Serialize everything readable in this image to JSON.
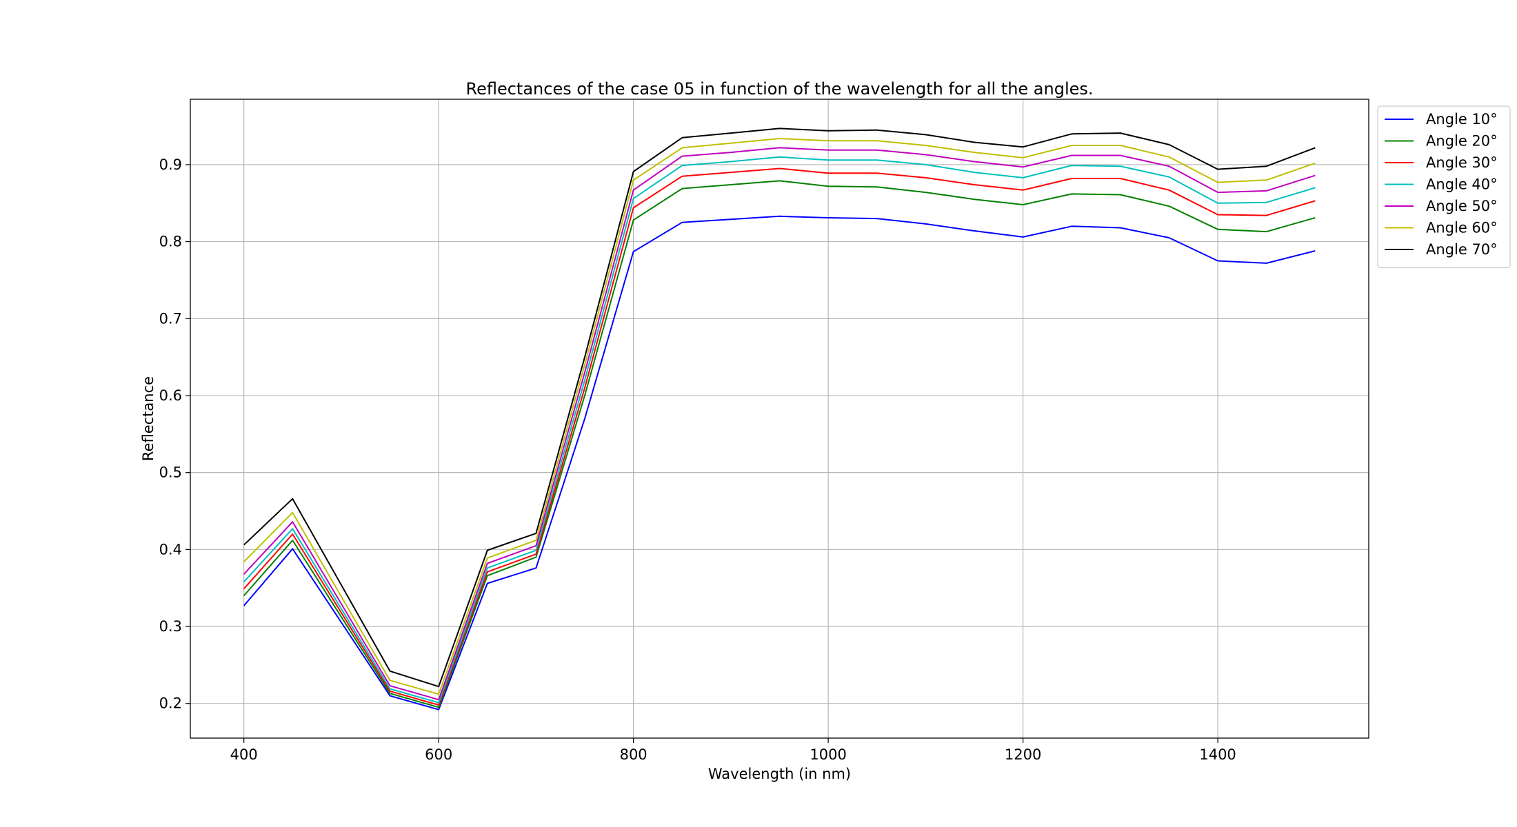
{
  "chart_data": {
    "type": "line",
    "title": "Reflectances of the case 05 in function of the wavelength for all the angles.",
    "xlabel": "Wavelength (in nm)",
    "ylabel": "Reflectance",
    "xlim": [
      345,
      1555
    ],
    "ylim": [
      0.155,
      0.985
    ],
    "xticks": [
      400,
      600,
      800,
      1000,
      1200,
      1400
    ],
    "xtick_labels": [
      "400",
      "600",
      "800",
      "1000",
      "1200",
      "1400"
    ],
    "yticks": [
      0.2,
      0.3,
      0.4,
      0.5,
      0.6,
      0.7,
      0.8,
      0.9
    ],
    "ytick_labels": [
      "0.2",
      "0.3",
      "0.4",
      "0.5",
      "0.6",
      "0.7",
      "0.8",
      "0.9"
    ],
    "grid": true,
    "legend_position": "outside-top-right",
    "x": [
      400,
      450,
      550,
      600,
      650,
      700,
      750,
      800,
      850,
      900,
      950,
      1000,
      1050,
      1100,
      1150,
      1200,
      1250,
      1300,
      1350,
      1400,
      1450,
      1500
    ],
    "series": [
      {
        "name": "Angle 10°",
        "color": "#0000ff",
        "values": [
          0.327,
          0.401,
          0.21,
          0.192,
          0.356,
          0.376,
          0.57,
          0.787,
          0.825,
          0.829,
          0.833,
          0.831,
          0.83,
          0.823,
          0.814,
          0.806,
          0.82,
          0.818,
          0.805,
          0.775,
          0.772,
          0.788
        ]
      },
      {
        "name": "Angle 20°",
        "color": "#008000",
        "values": [
          0.34,
          0.412,
          0.213,
          0.195,
          0.366,
          0.39,
          0.6,
          0.828,
          0.869,
          0.874,
          0.879,
          0.872,
          0.871,
          0.864,
          0.855,
          0.848,
          0.862,
          0.861,
          0.846,
          0.816,
          0.813,
          0.831
        ]
      },
      {
        "name": "Angle 30°",
        "color": "#ff0000",
        "values": [
          0.349,
          0.42,
          0.216,
          0.198,
          0.371,
          0.394,
          0.61,
          0.844,
          0.885,
          0.89,
          0.895,
          0.889,
          0.889,
          0.883,
          0.874,
          0.867,
          0.882,
          0.882,
          0.867,
          0.835,
          0.834,
          0.853
        ]
      },
      {
        "name": "Angle 40°",
        "color": "#00bfbf",
        "values": [
          0.358,
          0.427,
          0.219,
          0.201,
          0.376,
          0.399,
          0.62,
          0.856,
          0.899,
          0.904,
          0.91,
          0.906,
          0.906,
          0.9,
          0.89,
          0.883,
          0.899,
          0.898,
          0.884,
          0.85,
          0.851,
          0.87
        ]
      },
      {
        "name": "Angle 50°",
        "color": "#bf00bf",
        "values": [
          0.368,
          0.436,
          0.223,
          0.205,
          0.382,
          0.405,
          0.63,
          0.867,
          0.911,
          0.916,
          0.922,
          0.919,
          0.919,
          0.913,
          0.904,
          0.897,
          0.912,
          0.912,
          0.898,
          0.864,
          0.866,
          0.886
        ]
      },
      {
        "name": "Angle 60°",
        "color": "#bfbf00",
        "values": [
          0.384,
          0.448,
          0.23,
          0.212,
          0.389,
          0.412,
          0.64,
          0.88,
          0.922,
          0.928,
          0.934,
          0.931,
          0.931,
          0.925,
          0.916,
          0.909,
          0.925,
          0.925,
          0.91,
          0.877,
          0.88,
          0.902
        ]
      },
      {
        "name": "Angle 70°",
        "color": "#000000",
        "values": [
          0.406,
          0.466,
          0.242,
          0.222,
          0.399,
          0.421,
          0.65,
          0.891,
          0.935,
          0.941,
          0.947,
          0.944,
          0.945,
          0.939,
          0.929,
          0.923,
          0.94,
          0.941,
          0.926,
          0.894,
          0.898,
          0.922
        ]
      }
    ]
  }
}
